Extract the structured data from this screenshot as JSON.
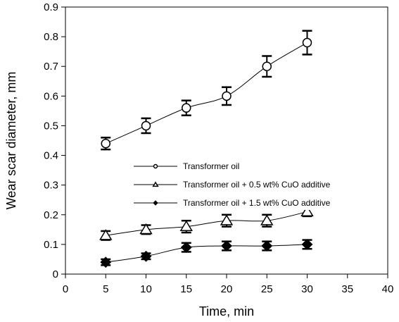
{
  "chart_data": {
    "type": "line",
    "xlabel": "Time, min",
    "ylabel": "Wear scar diameter, mm",
    "xlim": [
      0,
      40
    ],
    "ylim": [
      0,
      0.9
    ],
    "xticks": [
      "0",
      "5",
      "10",
      "15",
      "20",
      "25",
      "30",
      "35",
      "40"
    ],
    "yticks": [
      "0",
      "0.1",
      "0.2",
      "0.3",
      "0.4",
      "0.5",
      "0.6",
      "0.7",
      "0.8",
      "0.9"
    ],
    "grid": false,
    "legend_position": "center",
    "series": [
      {
        "name": "Transformer oil",
        "marker": "open-circle",
        "x": [
          5,
          10,
          15,
          20,
          25,
          30
        ],
        "y": [
          0.44,
          0.5,
          0.56,
          0.6,
          0.7,
          0.78
        ],
        "error": [
          0.02,
          0.025,
          0.025,
          0.03,
          0.035,
          0.04
        ]
      },
      {
        "name": "Transformer oil + 0.5 wt%  CuO additive",
        "marker": "open-triangle",
        "x": [
          5,
          10,
          15,
          20,
          25,
          30
        ],
        "y": [
          0.13,
          0.15,
          0.16,
          0.18,
          0.18,
          0.21
        ],
        "error": [
          0.015,
          0.015,
          0.02,
          0.02,
          0.02,
          0.015
        ]
      },
      {
        "name": "Transformer oil + 1.5 wt%  CuO additive",
        "marker": "filled-diamond",
        "x": [
          5,
          10,
          15,
          20,
          25,
          30
        ],
        "y": [
          0.04,
          0.06,
          0.09,
          0.095,
          0.095,
          0.1
        ],
        "error": [
          0.01,
          0.01,
          0.015,
          0.015,
          0.015,
          0.015
        ]
      }
    ]
  }
}
